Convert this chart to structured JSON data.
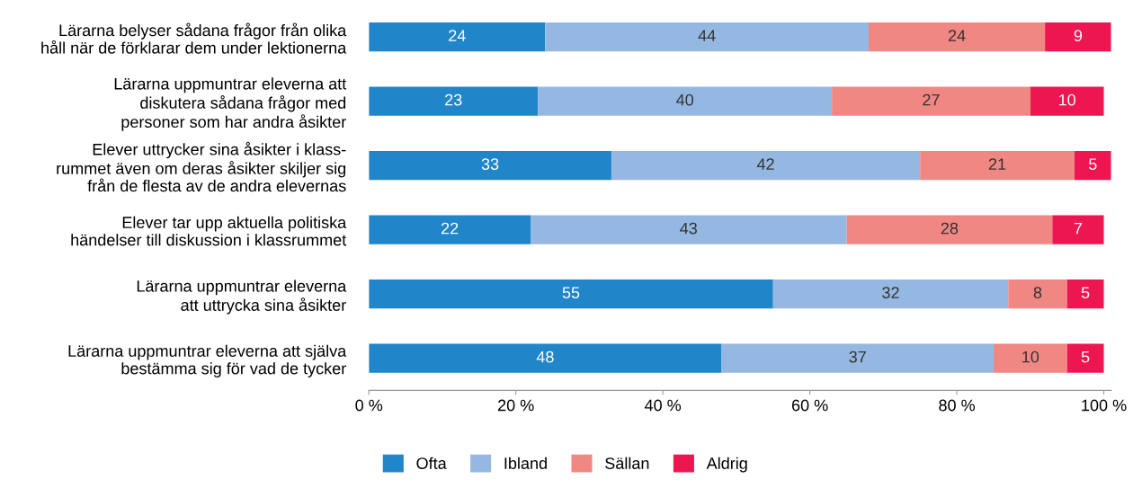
{
  "chart_data": {
    "type": "bar",
    "orientation": "horizontal",
    "stacked": true,
    "data_labels": true,
    "categories": [
      "Lärarna belyser sådana frågor från olika\nhåll när de förklarar dem under lektionerna",
      "Lärarna uppmuntrar eleverna att\ndiskutera sådana frågor med\npersoner som har andra åsikter",
      "Elever uttrycker sina åsikter i klass-\nrummet även om deras åsikter skiljer sig\nfrån de flesta av de andra elevernas",
      "Elever tar upp aktuella politiska\nhändelser till diskussion i klassrummet",
      "Lärarna uppmuntrar eleverna\natt uttrycka sina åsikter",
      "Lärarna uppmuntrar eleverna att själva\nbestämma sig för vad de tycker"
    ],
    "series": [
      {
        "name": "Ofta",
        "color": "#2185c9",
        "values": [
          24,
          23,
          33,
          22,
          55,
          48
        ]
      },
      {
        "name": "Ibland",
        "color": "#95b8e2",
        "values": [
          44,
          40,
          42,
          43,
          32,
          37
        ]
      },
      {
        "name": "Sällan",
        "color": "#f08783",
        "values": [
          24,
          27,
          21,
          28,
          8,
          10
        ]
      },
      {
        "name": "Aldrig",
        "color": "#ee1651",
        "values": [
          9,
          10,
          5,
          7,
          5,
          5
        ]
      }
    ],
    "xlim": [
      0,
      101
    ],
    "xticks": [
      {
        "value": 0,
        "label": "0 %"
      },
      {
        "value": 20,
        "label": "20 %"
      },
      {
        "value": 40,
        "label": "40 %"
      },
      {
        "value": 60,
        "label": "60 %"
      },
      {
        "value": 80,
        "label": "80 %"
      },
      {
        "value": 100,
        "label": "100 %"
      }
    ],
    "grid": false,
    "legend": "bottom"
  }
}
